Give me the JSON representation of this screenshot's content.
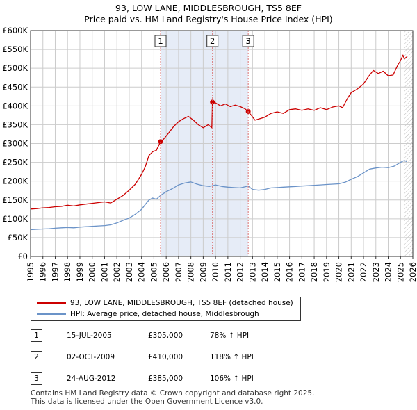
{
  "title_line1": "93, LOW LANE, MIDDLESBROUGH, TS5 8EF",
  "title_line2": "Price paid vs. HM Land Registry's House Price Index (HPI)",
  "colors": {
    "price_line": "#cc0000",
    "hpi_line": "#6b93c8",
    "shade": "#e6ecf7",
    "marker_line": "#d97070",
    "grid": "#cccccc"
  },
  "chart_data": {
    "type": "line",
    "xlim": [
      1995,
      2026
    ],
    "ylim": [
      0,
      600000
    ],
    "x_ticks": [
      "1995",
      "1996",
      "1997",
      "1998",
      "1999",
      "2000",
      "2001",
      "2002",
      "2003",
      "2004",
      "2005",
      "2006",
      "2007",
      "2008",
      "2009",
      "2010",
      "2011",
      "2012",
      "2013",
      "2014",
      "2015",
      "2016",
      "2017",
      "2018",
      "2019",
      "2020",
      "2021",
      "2022",
      "2023",
      "2024",
      "2025",
      "2026"
    ],
    "y_ticks": [
      {
        "value": 0,
        "label": "£0"
      },
      {
        "value": 50000,
        "label": "£50K"
      },
      {
        "value": 100000,
        "label": "£100K"
      },
      {
        "value": 150000,
        "label": "£150K"
      },
      {
        "value": 200000,
        "label": "£200K"
      },
      {
        "value": 250000,
        "label": "£250K"
      },
      {
        "value": 300000,
        "label": "£300K"
      },
      {
        "value": 350000,
        "label": "£350K"
      },
      {
        "value": 400000,
        "label": "£400K"
      },
      {
        "value": 450000,
        "label": "£450K"
      },
      {
        "value": 500000,
        "label": "£500K"
      },
      {
        "value": 550000,
        "label": "£550K"
      },
      {
        "value": 600000,
        "label": "£600K"
      }
    ],
    "shaded_ranges": [
      [
        2005.54,
        2012.65
      ]
    ],
    "future_hatch_start": 2025.3,
    "series": [
      {
        "name": "93, LOW LANE, MIDDLESBROUGH, TS5 8EF (detached house)",
        "color": "#cc0000",
        "points": [
          [
            1995.0,
            126000
          ],
          [
            1995.5,
            127000
          ],
          [
            1996.0,
            129000
          ],
          [
            1996.5,
            130000
          ],
          [
            1997.0,
            132000
          ],
          [
            1997.5,
            133000
          ],
          [
            1998.0,
            136000
          ],
          [
            1998.5,
            134000
          ],
          [
            1999.0,
            137000
          ],
          [
            1999.5,
            139000
          ],
          [
            2000.0,
            141000
          ],
          [
            2000.5,
            143000
          ],
          [
            2001.0,
            145000
          ],
          [
            2001.5,
            142000
          ],
          [
            2002.0,
            152000
          ],
          [
            2002.5,
            162000
          ],
          [
            2003.0,
            176000
          ],
          [
            2003.5,
            192000
          ],
          [
            2004.0,
            218000
          ],
          [
            2004.3,
            238000
          ],
          [
            2004.6,
            268000
          ],
          [
            2004.9,
            278000
          ],
          [
            2005.2,
            282000
          ],
          [
            2005.54,
            305000
          ],
          [
            2005.8,
            312000
          ],
          [
            2006.2,
            328000
          ],
          [
            2006.6,
            345000
          ],
          [
            2007.0,
            358000
          ],
          [
            2007.4,
            366000
          ],
          [
            2007.8,
            372000
          ],
          [
            2008.2,
            362000
          ],
          [
            2008.6,
            350000
          ],
          [
            2009.0,
            342000
          ],
          [
            2009.4,
            350000
          ],
          [
            2009.7,
            342000
          ],
          [
            2009.75,
            410000
          ],
          [
            2010.0,
            408000
          ],
          [
            2010.4,
            400000
          ],
          [
            2010.8,
            405000
          ],
          [
            2011.2,
            398000
          ],
          [
            2011.6,
            402000
          ],
          [
            2012.0,
            398000
          ],
          [
            2012.4,
            392000
          ],
          [
            2012.65,
            385000
          ],
          [
            2012.9,
            375000
          ],
          [
            2013.2,
            362000
          ],
          [
            2013.6,
            366000
          ],
          [
            2014.0,
            370000
          ],
          [
            2014.5,
            380000
          ],
          [
            2015.0,
            384000
          ],
          [
            2015.5,
            380000
          ],
          [
            2016.0,
            390000
          ],
          [
            2016.5,
            392000
          ],
          [
            2017.0,
            388000
          ],
          [
            2017.5,
            392000
          ],
          [
            2018.0,
            388000
          ],
          [
            2018.5,
            395000
          ],
          [
            2019.0,
            390000
          ],
          [
            2019.5,
            397000
          ],
          [
            2020.0,
            400000
          ],
          [
            2020.3,
            395000
          ],
          [
            2020.7,
            420000
          ],
          [
            2021.0,
            435000
          ],
          [
            2021.5,
            445000
          ],
          [
            2022.0,
            458000
          ],
          [
            2022.4,
            478000
          ],
          [
            2022.8,
            494000
          ],
          [
            2023.2,
            486000
          ],
          [
            2023.6,
            492000
          ],
          [
            2024.0,
            480000
          ],
          [
            2024.4,
            482000
          ],
          [
            2024.8,
            510000
          ],
          [
            2025.0,
            520000
          ],
          [
            2025.2,
            535000
          ],
          [
            2025.3,
            525000
          ],
          [
            2025.5,
            530000
          ]
        ]
      },
      {
        "name": "HPI: Average price, detached house, Middlesbrough",
        "color": "#6b93c8",
        "points": [
          [
            1995.0,
            71000
          ],
          [
            1995.5,
            72000
          ],
          [
            1996.0,
            73000
          ],
          [
            1996.5,
            73500
          ],
          [
            1997.0,
            75000
          ],
          [
            1997.5,
            76000
          ],
          [
            1998.0,
            77000
          ],
          [
            1998.5,
            76000
          ],
          [
            1999.0,
            78000
          ],
          [
            1999.5,
            79000
          ],
          [
            2000.0,
            80000
          ],
          [
            2000.5,
            81000
          ],
          [
            2001.0,
            82000
          ],
          [
            2001.5,
            84000
          ],
          [
            2002.0,
            89000
          ],
          [
            2002.5,
            96000
          ],
          [
            2003.0,
            102000
          ],
          [
            2003.5,
            112000
          ],
          [
            2004.0,
            125000
          ],
          [
            2004.3,
            138000
          ],
          [
            2004.6,
            150000
          ],
          [
            2004.9,
            155000
          ],
          [
            2005.2,
            152000
          ],
          [
            2005.54,
            162000
          ],
          [
            2006.0,
            172000
          ],
          [
            2006.5,
            180000
          ],
          [
            2007.0,
            190000
          ],
          [
            2007.5,
            195000
          ],
          [
            2008.0,
            198000
          ],
          [
            2008.5,
            192000
          ],
          [
            2009.0,
            188000
          ],
          [
            2009.5,
            186000
          ],
          [
            2009.75,
            188000
          ],
          [
            2010.0,
            190000
          ],
          [
            2010.5,
            186000
          ],
          [
            2011.0,
            184000
          ],
          [
            2011.5,
            183000
          ],
          [
            2012.0,
            182000
          ],
          [
            2012.65,
            187000
          ],
          [
            2013.0,
            178000
          ],
          [
            2013.5,
            176000
          ],
          [
            2014.0,
            178000
          ],
          [
            2014.5,
            182000
          ],
          [
            2015.0,
            183000
          ],
          [
            2015.5,
            184000
          ],
          [
            2016.0,
            185000
          ],
          [
            2016.5,
            186000
          ],
          [
            2017.0,
            187000
          ],
          [
            2017.5,
            188000
          ],
          [
            2018.0,
            189000
          ],
          [
            2018.5,
            190000
          ],
          [
            2019.0,
            191000
          ],
          [
            2019.5,
            192000
          ],
          [
            2020.0,
            193000
          ],
          [
            2020.5,
            197000
          ],
          [
            2021.0,
            205000
          ],
          [
            2021.5,
            212000
          ],
          [
            2022.0,
            222000
          ],
          [
            2022.5,
            232000
          ],
          [
            2023.0,
            235000
          ],
          [
            2023.5,
            237000
          ],
          [
            2024.0,
            236000
          ],
          [
            2024.5,
            240000
          ],
          [
            2025.0,
            250000
          ],
          [
            2025.3,
            255000
          ],
          [
            2025.5,
            252000
          ]
        ]
      }
    ],
    "sales": [
      {
        "num": "1",
        "x": 2005.54,
        "y": 305000
      },
      {
        "num": "2",
        "x": 2009.75,
        "y": 410000
      },
      {
        "num": "3",
        "x": 2012.65,
        "y": 385000
      }
    ]
  },
  "legend": {
    "price_label": "93, LOW LANE, MIDDLESBROUGH, TS5 8EF (detached house)",
    "hpi_label": "HPI: Average price, detached house, Middlesbrough"
  },
  "sales_table": [
    {
      "num": "1",
      "date": "15-JUL-2005",
      "price": "£305,000",
      "hpi": "78% ↑ HPI"
    },
    {
      "num": "2",
      "date": "02-OCT-2009",
      "price": "£410,000",
      "hpi": "118% ↑ HPI"
    },
    {
      "num": "3",
      "date": "24-AUG-2012",
      "price": "£385,000",
      "hpi": "106% ↑ HPI"
    }
  ],
  "footer": {
    "line1": "Contains HM Land Registry data © Crown copyright and database right 2025.",
    "line2": "This data is licensed under the Open Government Licence v3.0."
  }
}
